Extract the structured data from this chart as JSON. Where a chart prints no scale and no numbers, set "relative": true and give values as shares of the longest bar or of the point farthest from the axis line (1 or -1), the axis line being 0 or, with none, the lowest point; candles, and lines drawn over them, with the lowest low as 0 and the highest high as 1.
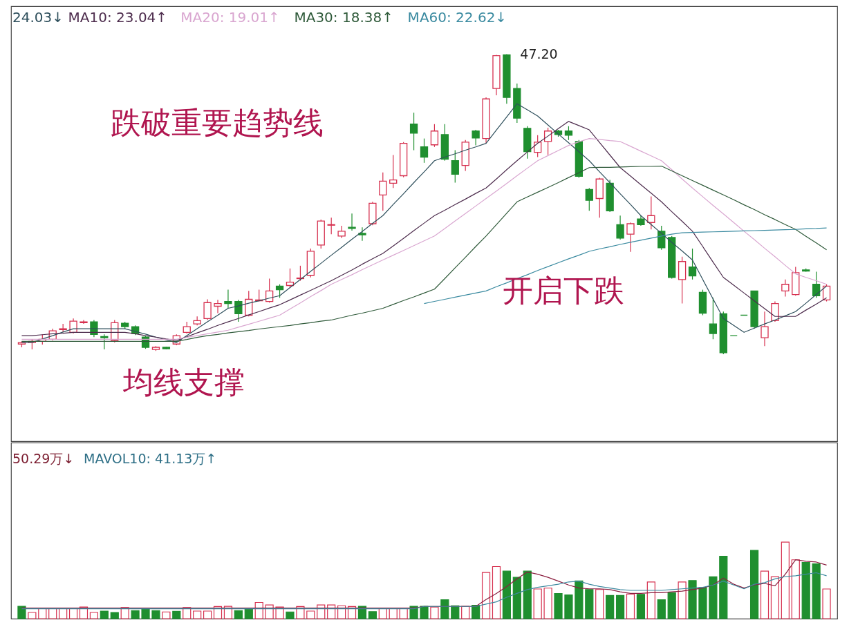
{
  "chart_data": [
    {
      "type": "candlestick",
      "relative": true,
      "categories": [
        null,
        null,
        null,
        null,
        null,
        null,
        null,
        null,
        null,
        null,
        null,
        null,
        null,
        null,
        null,
        null,
        null,
        null,
        null,
        null,
        null,
        null,
        null,
        null,
        null,
        null,
        null,
        null,
        null,
        null,
        null,
        null,
        null,
        null,
        null,
        null,
        null,
        null,
        null,
        null,
        null,
        null,
        null,
        null,
        null,
        null,
        null,
        null,
        null,
        null,
        null,
        null,
        null,
        null,
        null,
        null,
        null,
        null,
        null,
        null,
        null,
        null,
        null,
        null,
        null,
        null,
        null,
        null,
        null,
        null,
        null,
        null,
        null,
        null,
        null,
        null,
        null,
        null,
        null
      ],
      "ohlc": [
        [
          0.034,
          0.043,
          0.023,
          0.039
        ],
        [
          0.039,
          0.05,
          0.016,
          0.043
        ],
        [
          0.043,
          0.066,
          0.032,
          0.05
        ],
        [
          0.05,
          0.085,
          0.046,
          0.078
        ],
        [
          0.082,
          0.101,
          0.073,
          0.085
        ],
        [
          0.073,
          0.119,
          0.069,
          0.11
        ],
        [
          0.105,
          0.114,
          0.101,
          0.108
        ],
        [
          0.108,
          0.114,
          0.057,
          0.066
        ],
        [
          0.059,
          0.066,
          0.016,
          0.055
        ],
        [
          0.046,
          0.114,
          0.039,
          0.105
        ],
        [
          0.103,
          0.108,
          0.085,
          0.092
        ],
        [
          0.092,
          0.096,
          0.064,
          0.069
        ],
        [
          0.057,
          0.062,
          0.018,
          0.023
        ],
        [
          0.016,
          0.027,
          0.011,
          0.023
        ],
        [
          0.023,
          0.025,
          0.016,
          0.018
        ],
        [
          0.034,
          0.066,
          0.03,
          0.062
        ],
        [
          0.073,
          0.108,
          0.069,
          0.092
        ],
        [
          0.101,
          0.126,
          0.096,
          0.112
        ],
        [
          0.119,
          0.183,
          0.114,
          0.172
        ],
        [
          0.16,
          0.181,
          0.137,
          0.169
        ],
        [
          0.176,
          0.215,
          0.153,
          0.169
        ],
        [
          0.176,
          0.181,
          0.108,
          0.135
        ],
        [
          0.13,
          0.211,
          0.126,
          0.183
        ],
        [
          0.178,
          0.215,
          0.176,
          0.181
        ],
        [
          0.176,
          0.252,
          0.172,
          0.211
        ],
        [
          0.227,
          0.233,
          0.188,
          0.215
        ],
        [
          0.229,
          0.286,
          0.222,
          0.24
        ],
        [
          0.252,
          0.295,
          0.245,
          0.254
        ],
        [
          0.263,
          0.352,
          0.256,
          0.343
        ],
        [
          0.364,
          0.449,
          0.352,
          0.444
        ],
        [
          0.43,
          0.455,
          0.4,
          0.432
        ],
        [
          0.394,
          0.428,
          0.387,
          0.41
        ],
        [
          0.423,
          0.469,
          0.412,
          0.419
        ],
        [
          0.403,
          0.423,
          0.378,
          0.398
        ],
        [
          0.435,
          0.508,
          0.43,
          0.503
        ],
        [
          0.531,
          0.606,
          0.478,
          0.577
        ],
        [
          0.57,
          0.664,
          0.554,
          0.581
        ],
        [
          0.595,
          0.707,
          0.59,
          0.703
        ],
        [
          0.767,
          0.805,
          0.68,
          0.737
        ],
        [
          0.691,
          0.719,
          0.638,
          0.657
        ],
        [
          0.698,
          0.767,
          0.691,
          0.744
        ],
        [
          0.732,
          0.767,
          0.645,
          0.65
        ],
        [
          0.645,
          0.68,
          0.572,
          0.6
        ],
        [
          0.629,
          0.714,
          0.611,
          0.707
        ],
        [
          0.744,
          0.748,
          0.696,
          0.721
        ],
        [
          0.719,
          0.856,
          0.703,
          0.851
        ],
        [
          0.886,
          0.998,
          0.863,
          0.995
        ],
        [
          0.998,
          1,
          0.835,
          0.856
        ],
        [
          0.886,
          0.902,
          0.771,
          0.787
        ],
        [
          0.753,
          0.76,
          0.652,
          0.675
        ],
        [
          0.673,
          0.73,
          0.657,
          0.707
        ],
        [
          0.709,
          0.755,
          0.664,
          0.744
        ],
        [
          0.744,
          0.748,
          0.725,
          0.732
        ],
        [
          0.744,
          0.76,
          0.714,
          0.73
        ],
        [
          0.709,
          0.714,
          0.588,
          0.593
        ],
        [
          0.549,
          0.554,
          0.478,
          0.513
        ],
        [
          0.519,
          0.588,
          0.455,
          0.584
        ],
        [
          0.57,
          0.581,
          0.474,
          0.478
        ],
        [
          0.432,
          0.462,
          0.382,
          0.387
        ],
        [
          0.4,
          0.439,
          0.341,
          0.435
        ],
        [
          0.451,
          0.462,
          0.428,
          0.432
        ],
        [
          0.439,
          0.526,
          0.416,
          0.462
        ],
        [
          0.41,
          0.428,
          0.348,
          0.355
        ],
        [
          0.389,
          0.394,
          0.252,
          0.256
        ],
        [
          0.249,
          0.325,
          0.169,
          0.309
        ],
        [
          0.291,
          0.352,
          0.249,
          0.261
        ],
        [
          0.206,
          0.215,
          0.13,
          0.137
        ],
        [
          0.101,
          0.188,
          0.05,
          0.069
        ],
        [
          0.135,
          0.142,
          0,
          0.005
        ],
        [
          0.062,
          0.062,
          0.062,
          0.062
        ],
        [
          0.13,
          0.13,
          0.13,
          0.13
        ],
        [
          0.211,
          0.211,
          0.085,
          0.092
        ],
        [
          0.055,
          0.142,
          0.027,
          0.092
        ],
        [
          0.112,
          0.176,
          0.108,
          0.169
        ],
        [
          0.211,
          0.249,
          0.192,
          0.233
        ],
        [
          0.199,
          0.291,
          0.195,
          0.272
        ],
        [
          0.281,
          0.286,
          0.275,
          0.277
        ],
        [
          0.233,
          0.275,
          0.188,
          0.195
        ],
        [
          0.181,
          0.233,
          0.176,
          0.227
        ]
      ],
      "colors": [
        "#d6304f",
        "#d6304f",
        "#d6304f",
        "#d6304f",
        "#d6304f",
        "#d6304f",
        "#d6304f",
        "#1f8f2f",
        "#1f8f2f",
        "#d6304f",
        "#1f8f2f",
        "#1f8f2f",
        "#1f8f2f",
        "#d6304f",
        "#1f8f2f",
        "#d6304f",
        "#d6304f",
        "#d6304f",
        "#d6304f",
        "#d6304f",
        "#1f8f2f",
        "#1f8f2f",
        "#d6304f",
        "#d6304f",
        "#d6304f",
        "#1f8f2f",
        "#d6304f",
        "#d6304f",
        "#d6304f",
        "#d6304f",
        "#d6304f",
        "#d6304f",
        "#1f8f2f",
        "#1f8f2f",
        "#d6304f",
        "#d6304f",
        "#d6304f",
        "#d6304f",
        "#1f8f2f",
        "#1f8f2f",
        "#d6304f",
        "#1f8f2f",
        "#1f8f2f",
        "#d6304f",
        "#1f8f2f",
        "#d6304f",
        "#d6304f",
        "#1f8f2f",
        "#1f8f2f",
        "#1f8f2f",
        "#d6304f",
        "#d6304f",
        "#1f8f2f",
        "#1f8f2f",
        "#1f8f2f",
        "#1f8f2f",
        "#d6304f",
        "#1f8f2f",
        "#1f8f2f",
        "#d6304f",
        "#1f8f2f",
        "#d6304f",
        "#1f8f2f",
        "#1f8f2f",
        "#d6304f",
        "#1f8f2f",
        "#1f8f2f",
        "#1f8f2f",
        "#1f8f2f",
        "#1f8f2f",
        "#1f8f2f",
        "#1f8f2f",
        "#d6304f",
        "#d6304f",
        "#d6304f",
        "#d6304f",
        "#1f8f2f",
        "#1f8f2f",
        "#d6304f"
      ],
      "series": [
        {
          "type": "line",
          "color": "#2e4f5c",
          "values": [
            0.039,
            0.039,
            0.051,
            0.062,
            0.074,
            0.085,
            0.085,
            0.085,
            0.085,
            0.085,
            0.085,
            0.076,
            0.067,
            0.057,
            0.048,
            0.039,
            0.062,
            0.085,
            0.108,
            0.13,
            0.153,
            0.161,
            0.17,
            0.178,
            0.187,
            0.195,
            0.222,
            0.249,
            0.276,
            0.303,
            0.33,
            0.356,
            0.383,
            0.409,
            0.436,
            0.462,
            0.499,
            0.535,
            0.572,
            0.608,
            0.645,
            0.657,
            0.668,
            0.68,
            0.691,
            0.703,
            0.747,
            0.791,
            0.835,
            0.815,
            0.794,
            0.764,
            0.734,
            0.705,
            0.675,
            0.645,
            0.608,
            0.572,
            0.535,
            0.499,
            0.462,
            0.432,
            0.403,
            0.373,
            0.344,
            0.314,
            0.249,
            0.184,
            0.119,
            0.096,
            0.073,
            0.087,
            0.101,
            0.114,
            0.128,
            0.142,
            0.17,
            0.199,
            0.227
          ]
        },
        {
          "type": "line",
          "color": "#4d2c4d",
          "values": [
            0.062,
            0.062,
            0.065,
            0.068,
            0.07,
            0.073,
            0.073,
            0.073,
            0.073,
            0.073,
            0.073,
            0.068,
            0.062,
            0.057,
            0.051,
            0.046,
            0.058,
            0.071,
            0.083,
            0.096,
            0.108,
            0.119,
            0.131,
            0.142,
            0.154,
            0.165,
            0.181,
            0.197,
            0.213,
            0.229,
            0.245,
            0.263,
            0.281,
            0.3,
            0.318,
            0.336,
            0.361,
            0.386,
            0.412,
            0.437,
            0.462,
            0.48,
            0.499,
            0.517,
            0.536,
            0.554,
            0.584,
            0.615,
            0.645,
            0.674,
            0.703,
            0.727,
            0.752,
            0.776,
            0.762,
            0.748,
            0.706,
            0.664,
            0.622,
            0.594,
            0.565,
            0.537,
            0.508,
            0.475,
            0.443,
            0.41,
            0.359,
            0.307,
            0.256,
            0.23,
            0.204,
            0.178,
            0.152,
            0.126,
            0.126,
            0.126,
            0.147,
            0.167,
            0.188
          ]
        },
        {
          "type": "line",
          "color": "#d9a6d0",
          "values": [
            0.05,
            0.05,
            0.05,
            0.05,
            0.05,
            0.05,
            0.05,
            0.05,
            0.05,
            0.05,
            0.05,
            0.05,
            0.05,
            0.05,
            0.05,
            0.05,
            0.056,
            0.062,
            0.068,
            0.074,
            0.08,
            0.09,
            0.1,
            0.11,
            0.12,
            0.13,
            0.151,
            0.171,
            0.192,
            0.212,
            0.233,
            0.249,
            0.265,
            0.282,
            0.298,
            0.314,
            0.33,
            0.346,
            0.362,
            0.378,
            0.394,
            0.419,
            0.444,
            0.469,
            0.494,
            0.519,
            0.544,
            0.569,
            0.595,
            0.62,
            0.645,
            0.662,
            0.679,
            0.696,
            0.708,
            0.719,
            0.716,
            0.712,
            0.709,
            0.693,
            0.677,
            0.661,
            0.645,
            0.615,
            0.584,
            0.554,
            0.525,
            0.496,
            0.468,
            0.439,
            0.41,
            0.382,
            0.353,
            0.325,
            0.296,
            0.268,
            0.256,
            0.245,
            0.233
          ]
        },
        {
          "type": "line",
          "color": "#2f5a3a",
          "values": [
            0.043,
            0.043,
            0.043,
            0.043,
            0.043,
            0.043,
            0.043,
            0.043,
            0.043,
            0.043,
            0.043,
            0.043,
            0.043,
            0.043,
            0.043,
            0.043,
            0.049,
            0.056,
            0.062,
            0.066,
            0.071,
            0.075,
            0.079,
            0.084,
            0.088,
            0.092,
            0.096,
            0.101,
            0.105,
            0.11,
            0.114,
            0.122,
            0.13,
            0.137,
            0.145,
            0.153,
            0.166,
            0.179,
            0.191,
            0.204,
            0.217,
            0.252,
            0.288,
            0.323,
            0.359,
            0.394,
            0.432,
            0.47,
            0.508,
            0.524,
            0.54,
            0.556,
            0.572,
            0.589,
            0.605,
            0.622,
            0.623,
            0.623,
            0.624,
            0.625,
            0.626,
            0.626,
            0.627,
            0.611,
            0.595,
            0.579,
            0.563,
            0.547,
            0.531,
            0.515,
            0.498,
            0.482,
            0.465,
            0.449,
            0.432,
            0.416,
            0.393,
            0.371,
            0.348
          ]
        },
        {
          "type": "line",
          "color": "#3a8aa0",
          "values": [
            null,
            null,
            null,
            null,
            null,
            null,
            null,
            null,
            null,
            null,
            null,
            null,
            null,
            null,
            null,
            null,
            null,
            null,
            null,
            null,
            null,
            null,
            null,
            null,
            null,
            null,
            null,
            null,
            null,
            null,
            null,
            null,
            null,
            null,
            null,
            null,
            null,
            null,
            null,
            0.169,
            0.176,
            0.183,
            0.19,
            0.197,
            0.204,
            0.211,
            0.225,
            0.238,
            0.252,
            0.265,
            0.279,
            0.292,
            0.305,
            0.318,
            0.33,
            0.343,
            0.351,
            0.358,
            0.366,
            0.373,
            0.38,
            0.387,
            0.394,
            0.4,
            0.405,
            0.406,
            0.407,
            0.408,
            0.409,
            0.41,
            0.411,
            0.412,
            0.413,
            0.414,
            0.415,
            0.416,
            0.418,
            0.419,
            0.421
          ]
        }
      ],
      "annotations": [
        "24.03↓",
        "MA10: 23.04↑",
        "MA20: 19.01↑",
        "MA30: 18.38↑",
        "MA60: 22.62↓",
        "47.20",
        "跌破重要趋势线",
        "均线支撑",
        "开启下跌"
      ]
    },
    {
      "type": "bar",
      "relative": true,
      "categories": [
        null,
        null,
        null,
        null,
        null,
        null,
        null,
        null,
        null,
        null,
        null,
        null,
        null,
        null,
        null,
        null,
        null,
        null,
        null,
        null,
        null,
        null,
        null,
        null,
        null,
        null,
        null,
        null,
        null,
        null,
        null,
        null,
        null,
        null,
        null,
        null,
        null,
        null,
        null,
        null,
        null,
        null,
        null,
        null,
        null,
        null,
        null,
        null,
        null,
        null,
        null,
        null,
        null,
        null,
        null,
        null,
        null,
        null,
        null,
        null,
        null,
        null,
        null,
        null,
        null,
        null,
        null,
        null,
        null,
        null,
        null,
        null,
        null,
        null,
        null,
        null,
        null,
        null,
        null
      ],
      "values": [
        0.162,
        0.081,
        0.134,
        0.134,
        0.134,
        0.134,
        0.152,
        0.081,
        0.099,
        0.081,
        0.145,
        0.106,
        0.124,
        0.106,
        0.088,
        0.095,
        0.145,
        0.099,
        0.099,
        0.159,
        0.162,
        0.106,
        0.124,
        0.212,
        0.18,
        0.152,
        0.088,
        0.159,
        0.099,
        0.18,
        0.18,
        0.169,
        0.159,
        0.162,
        0.092,
        0.134,
        0.134,
        0.134,
        0.162,
        0.162,
        0.152,
        0.247,
        0.169,
        0.162,
        0.176,
        0.603,
        0.681,
        0.621,
        0.54,
        0.621,
        0.388,
        0.399,
        0.328,
        0.311,
        0.494,
        0.381,
        0.381,
        0.303,
        0.303,
        0.321,
        0.318,
        0.48,
        0.247,
        0.339,
        0.48,
        0.498,
        0.406,
        0.547,
        0.815,
        null,
        null,
        0.893,
        0.621,
        0.547,
        1,
        0.769,
        0.734,
        0.716,
        0.388
      ],
      "colors": [
        "#1f8f2f",
        "#d6304f",
        "#d6304f",
        "#d6304f",
        "#d6304f",
        "#d6304f",
        "#d6304f",
        "#d6304f",
        "#1f8f2f",
        "#1f8f2f",
        "#d6304f",
        "#1f8f2f",
        "#1f8f2f",
        "#1f8f2f",
        "#d6304f",
        "#1f8f2f",
        "#d6304f",
        "#d6304f",
        "#d6304f",
        "#d6304f",
        "#d6304f",
        "#1f8f2f",
        "#1f8f2f",
        "#d6304f",
        "#d6304f",
        "#d6304f",
        "#1f8f2f",
        "#d6304f",
        "#d6304f",
        "#d6304f",
        "#d6304f",
        "#d6304f",
        "#d6304f",
        "#1f8f2f",
        "#1f8f2f",
        "#d6304f",
        "#d6304f",
        "#d6304f",
        "#1f8f2f",
        "#1f8f2f",
        "#d6304f",
        "#1f8f2f",
        "#1f8f2f",
        "#d6304f",
        "#1f8f2f",
        "#d6304f",
        "#d6304f",
        "#1f8f2f",
        "#1f8f2f",
        "#1f8f2f",
        "#d6304f",
        "#d6304f",
        "#1f8f2f",
        "#1f8f2f",
        "#1f8f2f",
        "#1f8f2f",
        "#d6304f",
        "#1f8f2f",
        "#1f8f2f",
        "#d6304f",
        "#1f8f2f",
        "#d6304f",
        "#1f8f2f",
        "#1f8f2f",
        "#d6304f",
        "#1f8f2f",
        "#1f8f2f",
        "#1f8f2f",
        "#1f8f2f",
        "#1f8f2f",
        "#1f8f2f",
        "#1f8f2f",
        "#d6304f",
        "#d6304f",
        "#d6304f",
        "#d6304f",
        "#1f8f2f",
        "#1f8f2f",
        "#d6304f"
      ],
      "series": [
        {
          "type": "line",
          "color": "#8b1e3f",
          "values": [
            0.14,
            0.14,
            0.14,
            0.14,
            0.14,
            0.14,
            0.14,
            0.14,
            0.14,
            0.14,
            0.14,
            0.14,
            0.14,
            0.14,
            0.14,
            0.14,
            0.14,
            0.14,
            0.14,
            0.14,
            0.14,
            0.14,
            0.14,
            0.14,
            0.14,
            0.14,
            0.14,
            0.14,
            0.14,
            0.14,
            0.14,
            0.14,
            0.14,
            0.14,
            0.14,
            0.14,
            0.14,
            0.14,
            0.14,
            0.16,
            0.16,
            0.16,
            0.16,
            0.16,
            0.16,
            0.25,
            0.33,
            0.42,
            0.52,
            0.61,
            0.58,
            0.54,
            0.49,
            0.44,
            0.4,
            0.39,
            0.39,
            0.38,
            0.35,
            0.33,
            0.33,
            0.34,
            0.34,
            0.35,
            0.36,
            0.38,
            0.4,
            0.44,
            0.53,
            0.45,
            0.4,
            0.44,
            0.46,
            0.43,
            0.58,
            0.77,
            0.75,
            0.74,
            0.7
          ]
        },
        {
          "type": "line",
          "color": "#3f8aa0",
          "values": [
            0.13,
            0.13,
            0.13,
            0.13,
            0.13,
            0.13,
            0.13,
            0.13,
            0.13,
            0.13,
            0.13,
            0.13,
            0.13,
            0.13,
            0.13,
            0.13,
            0.13,
            0.13,
            0.13,
            0.13,
            0.13,
            0.13,
            0.13,
            0.13,
            0.13,
            0.13,
            0.13,
            0.13,
            0.13,
            0.13,
            0.13,
            0.13,
            0.13,
            0.13,
            0.13,
            0.13,
            0.13,
            0.13,
            0.13,
            0.16,
            0.16,
            0.16,
            0.16,
            0.16,
            0.16,
            0.19,
            0.22,
            0.28,
            0.33,
            0.38,
            0.41,
            0.43,
            0.45,
            0.48,
            0.49,
            0.45,
            0.42,
            0.4,
            0.38,
            0.37,
            0.37,
            0.37,
            0.37,
            0.38,
            0.39,
            0.4,
            0.41,
            0.44,
            0.49,
            0.44,
            0.39,
            0.45,
            0.47,
            0.52,
            0.55,
            0.56,
            0.58,
            0.6,
            0.56
          ]
        }
      ],
      "annotations": [
        "50.29万↓",
        "MAVOL10: 41.13万↑"
      ]
    }
  ]
}
